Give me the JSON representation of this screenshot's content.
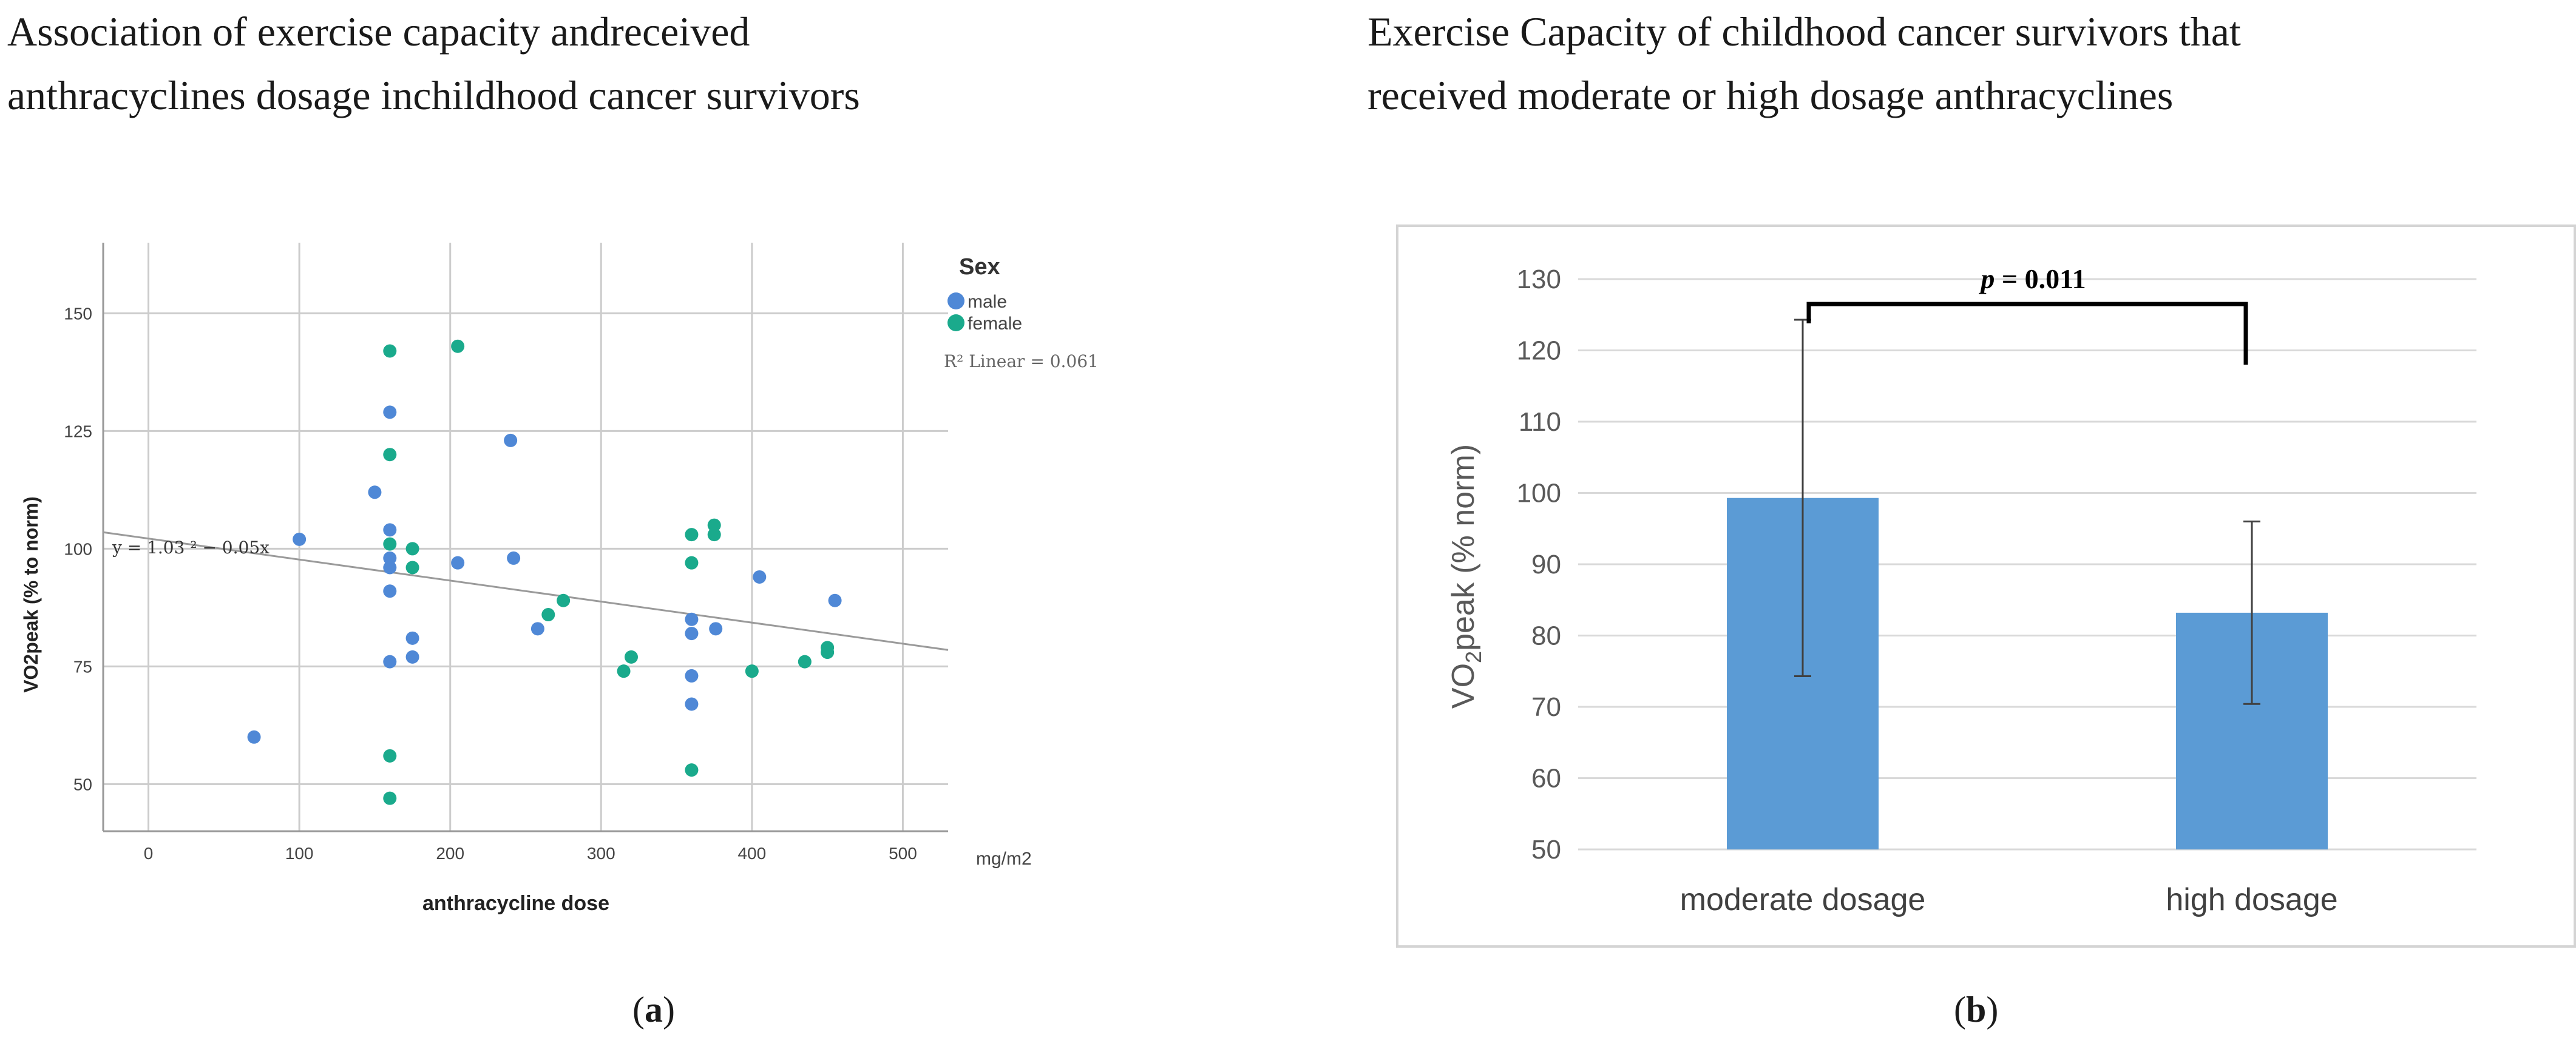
{
  "panel_a": {
    "title_line1": "Association of exercise capacity andreceived",
    "title_line2": "anthracyclines dosage inchildhood cancer survivors",
    "label_open": "(",
    "label_letter": "a",
    "label_close": ")"
  },
  "panel_b": {
    "title_line1": "Exercise Capacity of childhood cancer survivors that",
    "title_line2": "received moderate or high dosage anthracyclines",
    "label_open": "(",
    "label_letter": "b",
    "label_close": ")"
  },
  "chart_data": [
    {
      "type": "scatter",
      "title": "",
      "xlabel": "anthracycline dose",
      "x_unit_label": "mg/m2",
      "ylabel": "VO2peak (% to norm)",
      "xlim": [
        -30,
        530
      ],
      "ylim": [
        40,
        165
      ],
      "x_ticks": [
        0,
        100,
        200,
        300,
        400,
        500
      ],
      "y_ticks": [
        50,
        75,
        100,
        125,
        150
      ],
      "grid": true,
      "legend_title": "Sex",
      "legend_position": "top-right",
      "r2_label": "R² Linear = 0.061",
      "equation_label": "y = 1.03 ² − 0.05x",
      "fit_line": {
        "x": [
          -30,
          530
        ],
        "y": [
          103.5,
          78.5
        ]
      },
      "colors": {
        "male": "#4f88d6",
        "female": "#1aaa8c",
        "fit": "#9a9a9a",
        "grid": "#cccccc"
      },
      "series": [
        {
          "name": "male",
          "points": [
            [
              70,
              60
            ],
            [
              100,
              102
            ],
            [
              150,
              112
            ],
            [
              160,
              129
            ],
            [
              160,
              104
            ],
            [
              160,
              98
            ],
            [
              160,
              96
            ],
            [
              160,
              91
            ],
            [
              160,
              76
            ],
            [
              175,
              81
            ],
            [
              175,
              77
            ],
            [
              205,
              97
            ],
            [
              240,
              123
            ],
            [
              242,
              98
            ],
            [
              258,
              83
            ],
            [
              360,
              85
            ],
            [
              360,
              82
            ],
            [
              360,
              73
            ],
            [
              360,
              67
            ],
            [
              376,
              83
            ],
            [
              405,
              94
            ],
            [
              455,
              89
            ]
          ]
        },
        {
          "name": "female",
          "points": [
            [
              160,
              142
            ],
            [
              160,
              120
            ],
            [
              160,
              101
            ],
            [
              160,
              56
            ],
            [
              160,
              47
            ],
            [
              175,
              100
            ],
            [
              175,
              96
            ],
            [
              205,
              143
            ],
            [
              265,
              86
            ],
            [
              275,
              89
            ],
            [
              315,
              74
            ],
            [
              320,
              77
            ],
            [
              360,
              103
            ],
            [
              360,
              97
            ],
            [
              360,
              53
            ],
            [
              375,
              105
            ],
            [
              375,
              103
            ],
            [
              400,
              74
            ],
            [
              435,
              76
            ],
            [
              450,
              79
            ],
            [
              450,
              78
            ]
          ]
        }
      ]
    },
    {
      "type": "bar",
      "title": "",
      "categories": [
        "moderate dosage",
        "high dosage"
      ],
      "values": [
        99.3,
        83.2
      ],
      "error_upper": [
        124.3,
        96.0
      ],
      "error_lower": [
        74.3,
        70.4
      ],
      "ylabel_main": "VO",
      "ylabel_sub": "2",
      "ylabel_rest": "peak (% norm)",
      "ylim": [
        50,
        130
      ],
      "y_ticks": [
        50,
        60,
        70,
        80,
        90,
        100,
        110,
        120,
        130
      ],
      "grid": true,
      "bar_color": "#5b9bd5",
      "significance": {
        "label_p": "p",
        "label_rest": " = 0.011"
      }
    }
  ]
}
